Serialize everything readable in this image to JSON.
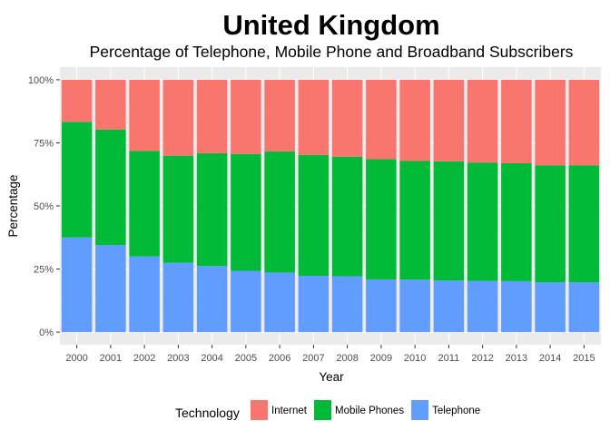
{
  "chart_data": {
    "type": "bar",
    "stacked": true,
    "title": "United Kingdom",
    "subtitle": "Percentage of Telephone, Mobile Phone and Broadband Subscribers",
    "xlabel": "Year",
    "ylabel": "Percentage",
    "ylim": [
      0,
      1
    ],
    "yticks": [
      0,
      0.25,
      0.5,
      0.75,
      1
    ],
    "ytick_labels": [
      "0%",
      "25%",
      "50%",
      "75%",
      "100%"
    ],
    "grid": true,
    "legend_position": "bottom",
    "legend_title": "Technology",
    "categories": [
      "2000",
      "2001",
      "2002",
      "2003",
      "2004",
      "2005",
      "2006",
      "2007",
      "2008",
      "2009",
      "2010",
      "2011",
      "2012",
      "2013",
      "2014",
      "2015"
    ],
    "series": [
      {
        "name": "Telephone",
        "color": "#619CFF",
        "values": [
          0.375,
          0.345,
          0.3,
          0.275,
          0.262,
          0.243,
          0.236,
          0.223,
          0.221,
          0.209,
          0.208,
          0.205,
          0.203,
          0.202,
          0.198,
          0.198
        ]
      },
      {
        "name": "Mobile Phones",
        "color": "#00BA38",
        "values": [
          0.458,
          0.458,
          0.418,
          0.424,
          0.447,
          0.463,
          0.48,
          0.479,
          0.474,
          0.476,
          0.47,
          0.472,
          0.469,
          0.467,
          0.463,
          0.463
        ]
      },
      {
        "name": "Internet",
        "color": "#F8766D",
        "values": [
          0.167,
          0.197,
          0.282,
          0.301,
          0.291,
          0.294,
          0.284,
          0.298,
          0.305,
          0.315,
          0.322,
          0.323,
          0.328,
          0.331,
          0.339,
          0.339
        ]
      }
    ],
    "legend_order": [
      "Internet",
      "Mobile Phones",
      "Telephone"
    ],
    "colors": {
      "panel_background": "#EBEBEB",
      "grid_major": "#FFFFFF",
      "grid_minor": "#F4F4F4",
      "text": "#000000",
      "tick_text": "#4D4D4D"
    }
  }
}
